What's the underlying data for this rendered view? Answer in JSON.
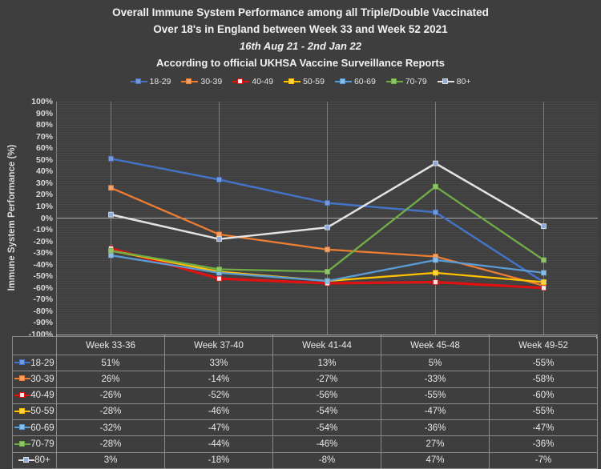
{
  "title": {
    "line1": "Overall Immune System Performance among all Triple/Double Vaccinated",
    "line2": "Over 18's in England between Week 33 and Week 52 2021",
    "line3": "16th Aug 21 - 2nd Jan 22",
    "line4": "According to official UKHSA Vaccine Surveillance Reports"
  },
  "chart_data": {
    "type": "line",
    "ylabel": "Immune System Performance (%)",
    "ylim": [
      -100,
      100
    ],
    "ytick_step": 10,
    "y_ticks": [
      "100%",
      "90%",
      "80%",
      "70%",
      "60%",
      "50%",
      "40%",
      "30%",
      "20%",
      "10%",
      "0%",
      "-10%",
      "-20%",
      "-30%",
      "-40%",
      "-50%",
      "-60%",
      "-70%",
      "-80%",
      "-90%",
      "-100%"
    ],
    "grid": true,
    "legend_position": "top",
    "categories": [
      "Week 33-36",
      "Week 37-40",
      "Week 41-44",
      "Week 45-48",
      "Week 49-52"
    ],
    "series": [
      {
        "name": "18-29",
        "values": [
          51,
          33,
          13,
          5,
          -55
        ],
        "color": "#4472C4",
        "marker_color": "#7398DC",
        "line_width": 2.5
      },
      {
        "name": "30-39",
        "values": [
          26,
          -14,
          -27,
          -33,
          -58
        ],
        "color": "#ED7D31",
        "marker_color": "#F2A36B",
        "line_width": 2.3
      },
      {
        "name": "40-49",
        "values": [
          -26,
          -52,
          -56,
          -55,
          -60
        ],
        "color": "#DE1212",
        "marker_color": "#F5EDED",
        "line_width": 3.2
      },
      {
        "name": "50-59",
        "values": [
          -28,
          -46,
          -54,
          -47,
          -55
        ],
        "color": "#FFC000",
        "marker_color": "#FFD44D",
        "line_width": 2.3
      },
      {
        "name": "60-69",
        "values": [
          -32,
          -47,
          -54,
          -36,
          -47
        ],
        "color": "#5B9BD5",
        "marker_color": "#8FBCE3",
        "line_width": 2.3
      },
      {
        "name": "70-79",
        "values": [
          -28,
          -44,
          -46,
          27,
          -36
        ],
        "color": "#70AD47",
        "marker_color": "#92C46F",
        "line_width": 2.3
      },
      {
        "name": "80+",
        "values": [
          3,
          -18,
          -8,
          47,
          -7
        ],
        "color": "#E2E2E2",
        "marker_color": "#8FAADC",
        "line_width": 2.5
      }
    ]
  },
  "table": {
    "columns": [
      "Week 33-36",
      "Week 37-40",
      "Week 41-44",
      "Week 45-48",
      "Week 49-52"
    ],
    "rows": [
      {
        "label": "18-29",
        "values": [
          "51%",
          "33%",
          "13%",
          "5%",
          "-55%"
        ]
      },
      {
        "label": "30-39",
        "values": [
          "26%",
          "-14%",
          "-27%",
          "-33%",
          "-58%"
        ]
      },
      {
        "label": "40-49",
        "values": [
          "-26%",
          "-52%",
          "-56%",
          "-55%",
          "-60%"
        ]
      },
      {
        "label": "50-59",
        "values": [
          "-28%",
          "-46%",
          "-54%",
          "-47%",
          "-55%"
        ]
      },
      {
        "label": "60-69",
        "values": [
          "-32%",
          "-47%",
          "-54%",
          "-36%",
          "-47%"
        ]
      },
      {
        "label": "70-79",
        "values": [
          "-28%",
          "-44%",
          "-46%",
          "27%",
          "-36%"
        ]
      },
      {
        "label": "80+",
        "values": [
          "3%",
          "-18%",
          "-8%",
          "47%",
          "-7%"
        ]
      }
    ]
  }
}
